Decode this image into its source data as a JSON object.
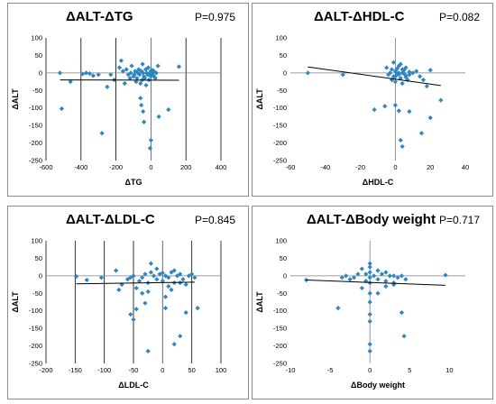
{
  "colors": {
    "point": "#2e86c1",
    "trend": "#000000",
    "grid": "#000000",
    "frame": "#8c8c8c"
  },
  "chart_data": [
    {
      "type": "scatter",
      "title": "ΔALT-ΔTG",
      "pvalue": "P=0.975",
      "xlabel": "ΔTG",
      "ylabel": "ΔALT",
      "xlim": [
        -600,
        400
      ],
      "ylim": [
        -250,
        100
      ],
      "xticks": [
        -600,
        -400,
        -200,
        0,
        200,
        400
      ],
      "yticks": [
        -250,
        -200,
        -150,
        -100,
        -50,
        0,
        50,
        100
      ],
      "grid": "vertical",
      "trendline": [
        [
          -520,
          -20
        ],
        [
          160,
          -21
        ]
      ],
      "points": [
        [
          -520,
          0
        ],
        [
          -510,
          -102
        ],
        [
          -460,
          -25
        ],
        [
          -390,
          -3
        ],
        [
          -370,
          0
        ],
        [
          -350,
          -2
        ],
        [
          -330,
          -8
        ],
        [
          -300,
          -5
        ],
        [
          -280,
          -172
        ],
        [
          -250,
          -40
        ],
        [
          -230,
          -5
        ],
        [
          -210,
          -20
        ],
        [
          -180,
          15
        ],
        [
          -170,
          35
        ],
        [
          -160,
          5
        ],
        [
          -150,
          -30
        ],
        [
          -140,
          10
        ],
        [
          -130,
          -5
        ],
        [
          -120,
          -15
        ],
        [
          -115,
          0
        ],
        [
          -110,
          20
        ],
        [
          -100,
          -10
        ],
        [
          -95,
          -5
        ],
        [
          -90,
          5
        ],
        [
          -85,
          -25
        ],
        [
          -80,
          -15
        ],
        [
          -75,
          0
        ],
        [
          -70,
          10
        ],
        [
          -65,
          -5
        ],
        [
          -60,
          -30
        ],
        [
          -55,
          5
        ],
        [
          -50,
          -20
        ],
        [
          -48,
          25
        ],
        [
          -45,
          0
        ],
        [
          -40,
          -10
        ],
        [
          -35,
          -15
        ],
        [
          -30,
          10
        ],
        [
          -28,
          -35
        ],
        [
          -25,
          0
        ],
        [
          -20,
          -5
        ],
        [
          -15,
          15
        ],
        [
          -12,
          -20
        ],
        [
          -10,
          -5
        ],
        [
          -5,
          0
        ],
        [
          -2,
          5
        ],
        [
          0,
          -10
        ],
        [
          5,
          -2
        ],
        [
          10,
          8
        ],
        [
          15,
          -8
        ],
        [
          20,
          3
        ],
        [
          25,
          -15
        ],
        [
          30,
          0
        ],
        [
          40,
          20
        ],
        [
          -60,
          -72
        ],
        [
          -55,
          -92
        ],
        [
          -45,
          -110
        ],
        [
          -40,
          -140
        ],
        [
          0,
          -192
        ],
        [
          -5,
          -215
        ],
        [
          45,
          -125
        ],
        [
          100,
          -105
        ],
        [
          160,
          18
        ]
      ]
    },
    {
      "type": "scatter",
      "title": "ΔALT-ΔHDL-C",
      "pvalue": "P=0.082",
      "xlabel": "ΔHDL-C",
      "ylabel": "ΔALT",
      "xlim": [
        -60,
        40
      ],
      "ylim": [
        -250,
        100
      ],
      "xticks": [
        -60,
        -40,
        -20,
        0,
        20,
        40
      ],
      "yticks": [
        -250,
        -200,
        -150,
        -100,
        -50,
        0,
        50,
        100
      ],
      "grid": "none",
      "trendline": [
        [
          -50,
          17
        ],
        [
          26,
          -36
        ]
      ],
      "points": [
        [
          -50,
          0
        ],
        [
          -30,
          -5
        ],
        [
          -5,
          15
        ],
        [
          -4,
          -5
        ],
        [
          -3,
          0
        ],
        [
          -2,
          10
        ],
        [
          -1,
          -10
        ],
        [
          0,
          5
        ],
        [
          1,
          -3
        ],
        [
          2,
          20
        ],
        [
          3,
          -15
        ],
        [
          4,
          0
        ],
        [
          5,
          8
        ],
        [
          6,
          -8
        ],
        [
          7,
          -20
        ],
        [
          8,
          3
        ],
        [
          -1,
          30
        ],
        [
          0,
          -25
        ],
        [
          1,
          12
        ],
        [
          2,
          -5
        ],
        [
          3,
          25
        ],
        [
          4,
          -30
        ],
        [
          5,
          -2
        ],
        [
          6,
          15
        ],
        [
          -2,
          -20
        ],
        [
          0,
          -10
        ],
        [
          2,
          0
        ],
        [
          4,
          10
        ],
        [
          6,
          -12
        ],
        [
          8,
          -5
        ],
        [
          10,
          0
        ],
        [
          12,
          5
        ],
        [
          14,
          -10
        ],
        [
          16,
          -20
        ],
        [
          18,
          -38
        ],
        [
          20,
          8
        ],
        [
          -6,
          -95
        ],
        [
          -12,
          -105
        ],
        [
          0,
          -92
        ],
        [
          2,
          -108
        ],
        [
          8,
          -110
        ],
        [
          3,
          -192
        ],
        [
          4,
          -210
        ],
        [
          15,
          -172
        ],
        [
          20,
          -128
        ],
        [
          26,
          -78
        ]
      ]
    },
    {
      "type": "scatter",
      "title": "ΔALT-ΔLDL-C",
      "pvalue": "P=0.845",
      "xlabel": "ΔLDL-C",
      "ylabel": "ΔALT",
      "xlim": [
        -200,
        100
      ],
      "ylim": [
        -250,
        100
      ],
      "xticks": [
        -200,
        -150,
        -100,
        -50,
        0,
        50,
        100
      ],
      "yticks": [
        -250,
        -200,
        -150,
        -100,
        -50,
        0,
        50,
        100
      ],
      "grid": "vertical",
      "trendline": [
        [
          -148,
          -23
        ],
        [
          55,
          -18
        ]
      ],
      "points": [
        [
          -148,
          -2
        ],
        [
          -130,
          -12
        ],
        [
          -105,
          -5
        ],
        [
          -80,
          15
        ],
        [
          -75,
          -40
        ],
        [
          -70,
          -25
        ],
        [
          -60,
          -10
        ],
        [
          -55,
          -5
        ],
        [
          -50,
          0
        ],
        [
          -45,
          -35
        ],
        [
          -40,
          -15
        ],
        [
          -35,
          -5
        ],
        [
          -30,
          5
        ],
        [
          -25,
          -20
        ],
        [
          -20,
          10
        ],
        [
          -15,
          0
        ],
        [
          -10,
          -10
        ],
        [
          -5,
          5
        ],
        [
          0,
          -15
        ],
        [
          5,
          0
        ],
        [
          10,
          -5
        ],
        [
          15,
          10
        ],
        [
          20,
          -20
        ],
        [
          25,
          0
        ],
        [
          30,
          5
        ],
        [
          35,
          -10
        ],
        [
          40,
          -25
        ],
        [
          45,
          0
        ],
        [
          50,
          5
        ],
        [
          55,
          -5
        ],
        [
          -20,
          35
        ],
        [
          -10,
          20
        ],
        [
          0,
          8
        ],
        [
          10,
          -30
        ],
        [
          20,
          15
        ],
        [
          30,
          -20
        ],
        [
          -35,
          -50
        ],
        [
          -25,
          -45
        ],
        [
          5,
          -60
        ],
        [
          15,
          -40
        ],
        [
          -55,
          -110
        ],
        [
          -50,
          -125
        ],
        [
          -30,
          -78
        ],
        [
          -45,
          -95
        ],
        [
          -25,
          -215
        ],
        [
          5,
          -92
        ],
        [
          20,
          -195
        ],
        [
          30,
          -172
        ],
        [
          40,
          -105
        ],
        [
          60,
          -92
        ]
      ]
    },
    {
      "type": "scatter",
      "title": "ΔALT-ΔBody weight",
      "pvalue": "P=0.717",
      "xlabel": "ΔBody weight",
      "ylabel": "ΔALT",
      "xlim": [
        -10,
        12
      ],
      "ylim": [
        -250,
        100
      ],
      "xticks": [
        -10,
        -5,
        0,
        5,
        10
      ],
      "yticks": [
        -250,
        -200,
        -150,
        -100,
        -50,
        0,
        50,
        100
      ],
      "grid": "none",
      "trendline": [
        [
          -8,
          -12
        ],
        [
          9.5,
          -27
        ]
      ],
      "points": [
        [
          -8,
          -12
        ],
        [
          -4,
          -92
        ],
        [
          -3.5,
          -5
        ],
        [
          -3,
          0
        ],
        [
          -2.5,
          -10
        ],
        [
          -2,
          -5
        ],
        [
          -1.5,
          5
        ],
        [
          -1,
          20
        ],
        [
          -0.5,
          -15
        ],
        [
          0,
          35
        ],
        [
          0,
          25
        ],
        [
          0,
          10
        ],
        [
          0,
          -5
        ],
        [
          0,
          -20
        ],
        [
          0,
          -50
        ],
        [
          0,
          -75
        ],
        [
          0,
          -110
        ],
        [
          0,
          -130
        ],
        [
          0,
          -195
        ],
        [
          0,
          -215
        ],
        [
          0.5,
          0
        ],
        [
          1,
          -10
        ],
        [
          1.5,
          5
        ],
        [
          2,
          -15
        ],
        [
          2.5,
          0
        ],
        [
          3,
          -20
        ],
        [
          3.5,
          -5
        ],
        [
          4,
          0
        ],
        [
          4.5,
          -10
        ],
        [
          1,
          -50
        ],
        [
          2,
          -30
        ],
        [
          3,
          0
        ],
        [
          4,
          -105
        ],
        [
          4.3,
          -172
        ],
        [
          9.5,
          2
        ],
        [
          -1,
          -35
        ],
        [
          -0.5,
          5
        ],
        [
          1,
          15
        ],
        [
          2,
          10
        ],
        [
          3,
          -25
        ]
      ]
    }
  ]
}
